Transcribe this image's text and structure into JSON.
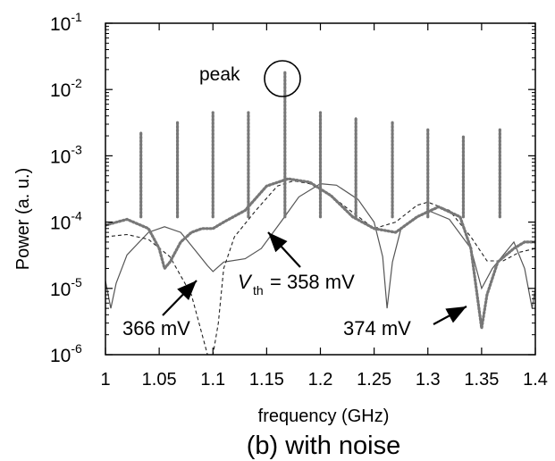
{
  "chart_data": {
    "type": "line",
    "subtitle": "(b) with noise",
    "xlabel": "frequency (GHz)",
    "ylabel": "Power (a. u.)",
    "xlim": [
      1.0,
      1.4
    ],
    "ylim": [
      1e-06,
      0.1
    ],
    "yscale": "log",
    "grid": false,
    "x_ticks": [
      "1",
      "1.05",
      "1.1",
      "1.15",
      "1.2",
      "1.25",
      "1.3",
      "1.35",
      "1.4"
    ],
    "y_ticks": [
      {
        "base": "10",
        "exp": "-6"
      },
      {
        "base": "10",
        "exp": "-5"
      },
      {
        "base": "10",
        "exp": "-4"
      },
      {
        "base": "10",
        "exp": "-3"
      },
      {
        "base": "10",
        "exp": "-2"
      },
      {
        "base": "10",
        "exp": "-1"
      }
    ],
    "annotations": {
      "peak": "peak",
      "vth_symbol": "V",
      "vth_subscript": "th",
      "vth_value": "= 358 mV",
      "label_366": "366 mV",
      "label_374": "374 mV"
    },
    "peaks": {
      "x": [
        1.033,
        1.067,
        1.1,
        1.133,
        1.167,
        1.2,
        1.233,
        1.267,
        1.3,
        1.333,
        1.367
      ],
      "y": [
        0.0023,
        0.0032,
        0.0045,
        0.0045,
        0.018,
        0.0045,
        0.0038,
        0.0033,
        0.0025,
        0.002,
        0.0025
      ]
    },
    "series": [
      {
        "style": "solid",
        "x": [
          1.0,
          1.005,
          1.01,
          1.02,
          1.04,
          1.055,
          1.07,
          1.085,
          1.095,
          1.1,
          1.11,
          1.13,
          1.145,
          1.165,
          1.18,
          1.2,
          1.215,
          1.235,
          1.25,
          1.258,
          1.262,
          1.267,
          1.275,
          1.3,
          1.32,
          1.34,
          1.35,
          1.36,
          1.38,
          1.39,
          1.397,
          1.4
        ],
        "y": [
          1.3e-05,
          5e-06,
          1.2e-05,
          3.2e-05,
          7e-05,
          8.5e-05,
          7e-05,
          3.5e-05,
          2.2e-05,
          1.8e-05,
          2.5e-05,
          2.8e-05,
          4e-05,
          0.00011,
          0.00024,
          0.00038,
          0.00036,
          0.00022,
          0.0001,
          3e-05,
          5e-06,
          2.5e-05,
          8e-05,
          0.00015,
          0.00011,
          4e-05,
          1e-05,
          2e-05,
          5e-05,
          2e-05,
          5e-06,
          1e-05
        ]
      },
      {
        "style": "dashed",
        "x": [
          1.0,
          1.02,
          1.04,
          1.06,
          1.08,
          1.09,
          1.095,
          1.1,
          1.105,
          1.11,
          1.12,
          1.14,
          1.16,
          1.175,
          1.19,
          1.21,
          1.23,
          1.25,
          1.27,
          1.29,
          1.3,
          1.32,
          1.34,
          1.355,
          1.37,
          1.385,
          1.4
        ],
        "y": [
          6e-05,
          6.5e-05,
          5.5e-05,
          3e-05,
          8e-06,
          2e-06,
          1e-06,
          1e-06,
          3e-06,
          2e-05,
          6e-05,
          0.00015,
          0.00035,
          0.00042,
          0.00038,
          0.00025,
          0.00014,
          8e-05,
          0.0001,
          0.00018,
          0.0002,
          0.00015,
          6e-05,
          2.6e-05,
          2.6e-05,
          3.5e-05,
          4e-05
        ]
      },
      {
        "style": "dotted",
        "x": [
          1.0,
          1.02,
          1.04,
          1.05,
          1.055,
          1.06,
          1.07,
          1.08,
          1.09,
          1.1,
          1.11,
          1.13,
          1.15,
          1.17,
          1.19,
          1.21,
          1.23,
          1.25,
          1.27,
          1.29,
          1.31,
          1.33,
          1.34,
          1.345,
          1.35,
          1.355,
          1.365,
          1.38,
          1.39,
          1.4
        ],
        "y": [
          9e-05,
          0.00011,
          8e-05,
          4e-05,
          2e-05,
          2.5e-05,
          5e-05,
          7e-05,
          8e-05,
          8e-05,
          0.0001,
          0.00015,
          0.00035,
          0.00045,
          0.0004,
          0.00025,
          0.00012,
          8e-05,
          7e-05,
          0.00012,
          0.00017,
          0.00012,
          4e-05,
          1e-05,
          2.5e-06,
          8e-06,
          2.5e-05,
          4e-05,
          5e-05,
          5e-05
        ]
      }
    ]
  }
}
